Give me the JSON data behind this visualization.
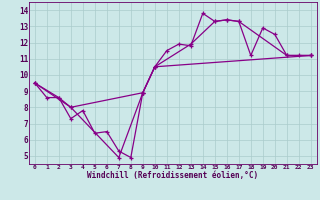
{
  "xlabel": "Windchill (Refroidissement éolien,°C)",
  "bg_color": "#cce8e8",
  "grid_color": "#aacccc",
  "line_color": "#880088",
  "xlim": [
    -0.5,
    23.5
  ],
  "ylim": [
    4.5,
    14.5
  ],
  "xticks": [
    0,
    1,
    2,
    3,
    4,
    5,
    6,
    7,
    8,
    9,
    10,
    11,
    12,
    13,
    14,
    15,
    16,
    17,
    18,
    19,
    20,
    21,
    22,
    23
  ],
  "yticks": [
    5,
    6,
    7,
    8,
    9,
    10,
    11,
    12,
    13,
    14
  ],
  "line1_x": [
    0,
    1,
    2,
    3,
    4,
    5,
    6,
    7,
    8,
    9,
    10,
    11,
    12,
    13,
    14,
    15,
    16,
    17,
    18,
    19,
    20,
    21,
    22,
    23
  ],
  "line1_y": [
    9.5,
    8.6,
    8.6,
    7.3,
    7.8,
    6.4,
    6.5,
    5.3,
    4.9,
    8.9,
    10.5,
    11.5,
    11.9,
    11.8,
    13.8,
    13.3,
    13.4,
    13.3,
    11.2,
    12.9,
    12.5,
    11.2,
    11.2,
    11.2
  ],
  "line2_x": [
    0,
    2,
    3,
    9,
    10,
    13,
    15,
    16,
    17,
    21,
    23
  ],
  "line2_y": [
    9.5,
    8.6,
    8.0,
    8.9,
    10.5,
    11.9,
    13.3,
    13.4,
    13.3,
    11.2,
    11.2
  ],
  "line3_x": [
    0,
    3,
    7,
    9,
    10,
    23
  ],
  "line3_y": [
    9.5,
    8.0,
    4.9,
    8.9,
    10.5,
    11.2
  ]
}
